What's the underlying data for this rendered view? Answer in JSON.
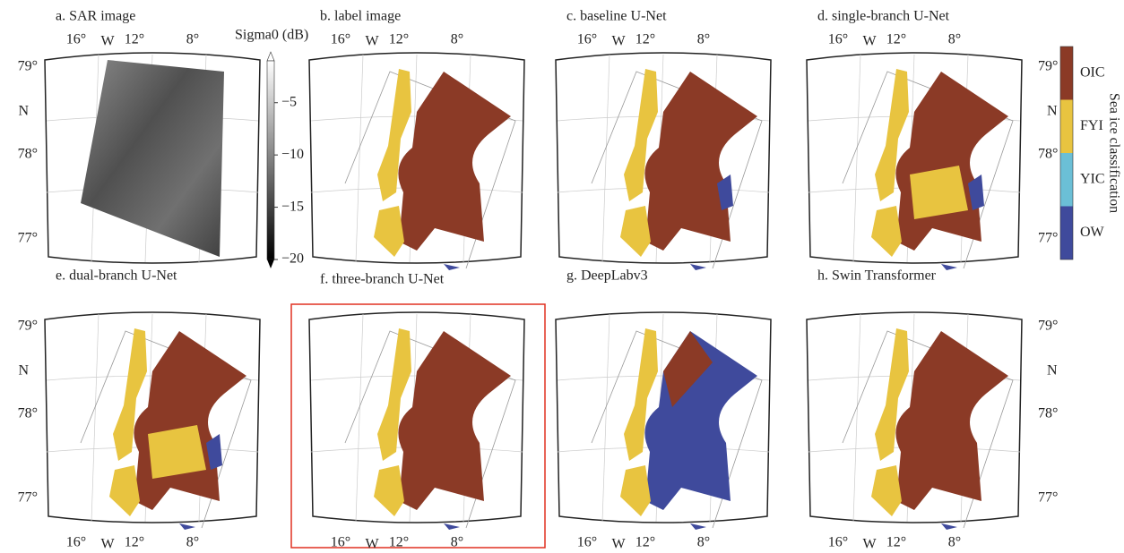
{
  "panels": [
    {
      "title": "a. SAR image"
    },
    {
      "title": "b. label image"
    },
    {
      "title": "c. baseline U-Net"
    },
    {
      "title": "d. single-branch U-Net"
    },
    {
      "title": "e. dual-branch U-Net"
    },
    {
      "title": "f. three-branch U-Net"
    },
    {
      "title": "g. DeepLabv3"
    },
    {
      "title": "h. Swin Transformer"
    }
  ],
  "lat_labels": [
    "79°",
    "78°",
    "77°"
  ],
  "lat_hemisphere": "N",
  "lon_labels": [
    "16°",
    "W",
    "12°",
    "8°"
  ],
  "colorbar": {
    "title": "Sigma0 (dB)",
    "clim": [
      -20,
      -1
    ],
    "ticks": [
      {
        "value": -5,
        "label": "−5"
      },
      {
        "value": -10,
        "label": "−10"
      },
      {
        "value": -15,
        "label": "−15"
      },
      {
        "value": -20,
        "label": "−20"
      }
    ]
  },
  "legend": {
    "title": "Sea ice classification",
    "classes": [
      {
        "name": "OIC",
        "color": "#8b3a26"
      },
      {
        "name": "FYI",
        "color": "#e8c440"
      },
      {
        "name": "YIC",
        "color": "#6bbfd6"
      },
      {
        "name": "OW",
        "color": "#3f4a9c"
      }
    ]
  }
}
